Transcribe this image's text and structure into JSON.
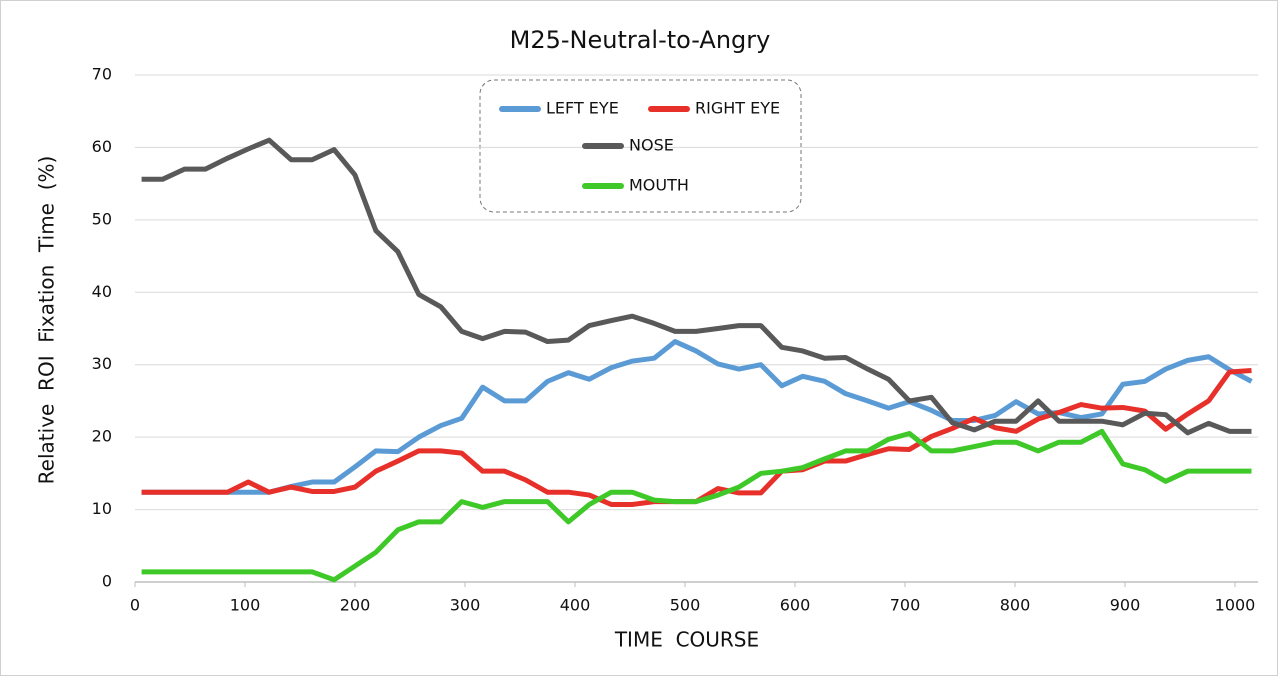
{
  "chart_data": {
    "type": "line",
    "title": "M25-Neutral-to-Angry",
    "x_label": "TIME  COURSE",
    "y_label": "Relative  ROI  Fixation  Time  (%)",
    "x": [
      6,
      25,
      45,
      64,
      84,
      103,
      122,
      142,
      161,
      181,
      200,
      219,
      239,
      258,
      278,
      297,
      316,
      336,
      355,
      375,
      394,
      413,
      433,
      452,
      472,
      491,
      510,
      530,
      549,
      569,
      588,
      607,
      627,
      646,
      666,
      685,
      704,
      724,
      743,
      763,
      782,
      801,
      821,
      840,
      860,
      879,
      898,
      918,
      937,
      957,
      976,
      995,
      1015
    ],
    "series": [
      {
        "name": "LEFT EYE",
        "color": "#5b9bd5",
        "values": [
          12.4,
          12.4,
          12.4,
          12.4,
          12.4,
          12.4,
          12.4,
          13.2,
          13.8,
          13.8,
          15.9,
          18.1,
          18,
          20,
          21.6,
          22.6,
          26.9,
          25,
          25,
          27.7,
          28.9,
          28,
          29.6,
          30.5,
          30.9,
          33.2,
          31.9,
          30.1,
          29.4,
          30,
          27.1,
          28.4,
          27.7,
          26,
          25,
          24,
          24.9,
          23.7,
          22.3,
          22.3,
          23,
          24.9,
          23.2,
          23.4,
          22.7,
          23.2,
          27.3,
          27.7,
          29.4,
          30.6,
          31.1,
          29.3,
          27.7
        ]
      },
      {
        "name": "RIGHT EYE",
        "color": "#e8302a",
        "values": [
          12.4,
          12.4,
          12.4,
          12.4,
          12.4,
          13.8,
          12.4,
          13.1,
          12.5,
          12.5,
          13.1,
          15.3,
          16.7,
          18.1,
          18.1,
          17.8,
          15.3,
          15.3,
          14.1,
          12.4,
          12.4,
          12,
          10.7,
          10.7,
          11.1,
          11.1,
          11.1,
          12.9,
          12.3,
          12.3,
          15.3,
          15.5,
          16.7,
          16.7,
          17.6,
          18.4,
          18.3,
          20.1,
          21.2,
          22.6,
          21.3,
          20.8,
          22.5,
          23.4,
          24.5,
          24,
          24.1,
          23.6,
          21.1,
          23.2,
          25,
          29,
          29.2
        ]
      },
      {
        "name": "NOSE",
        "color": "#595959",
        "values": [
          55.6,
          55.6,
          57,
          57,
          58.5,
          59.8,
          61,
          58.3,
          58.3,
          59.7,
          56.2,
          48.5,
          45.6,
          39.7,
          38,
          34.6,
          33.6,
          34.6,
          34.5,
          33.2,
          33.4,
          35.4,
          36.1,
          36.7,
          35.7,
          34.6,
          34.6,
          35,
          35.4,
          35.4,
          32.4,
          31.9,
          30.9,
          31,
          29.4,
          28,
          25,
          25.5,
          22,
          21,
          22.2,
          22.2,
          25,
          22.2,
          22.2,
          22.2,
          21.7,
          23.3,
          23.1,
          20.6,
          21.9,
          20.8,
          20.8
        ]
      },
      {
        "name": "MOUTH",
        "color": "#3ec928",
        "values": [
          1.4,
          1.4,
          1.4,
          1.4,
          1.4,
          1.4,
          1.4,
          1.4,
          1.4,
          0.3,
          2.2,
          4.1,
          7.2,
          8.3,
          8.3,
          11.1,
          10.3,
          11.1,
          11.1,
          11.1,
          8.3,
          10.7,
          12.4,
          12.4,
          11.3,
          11.1,
          11.1,
          12,
          13.1,
          15,
          15.3,
          15.8,
          17,
          18.1,
          18.1,
          19.7,
          20.5,
          18.1,
          18.1,
          18.7,
          19.3,
          19.3,
          18.1,
          19.3,
          19.3,
          20.8,
          16.3,
          15.5,
          13.9,
          15.3,
          15.3,
          15.3,
          15.3
        ]
      }
    ],
    "xlim": [
      0,
      1021
    ],
    "xticks": [
      0,
      100,
      200,
      300,
      400,
      500,
      600,
      700,
      800,
      900,
      1000
    ],
    "ylim": [
      0,
      70
    ],
    "yticks": [
      0,
      10,
      20,
      30,
      40,
      50,
      60,
      70
    ],
    "grid": true,
    "legend": "top"
  }
}
